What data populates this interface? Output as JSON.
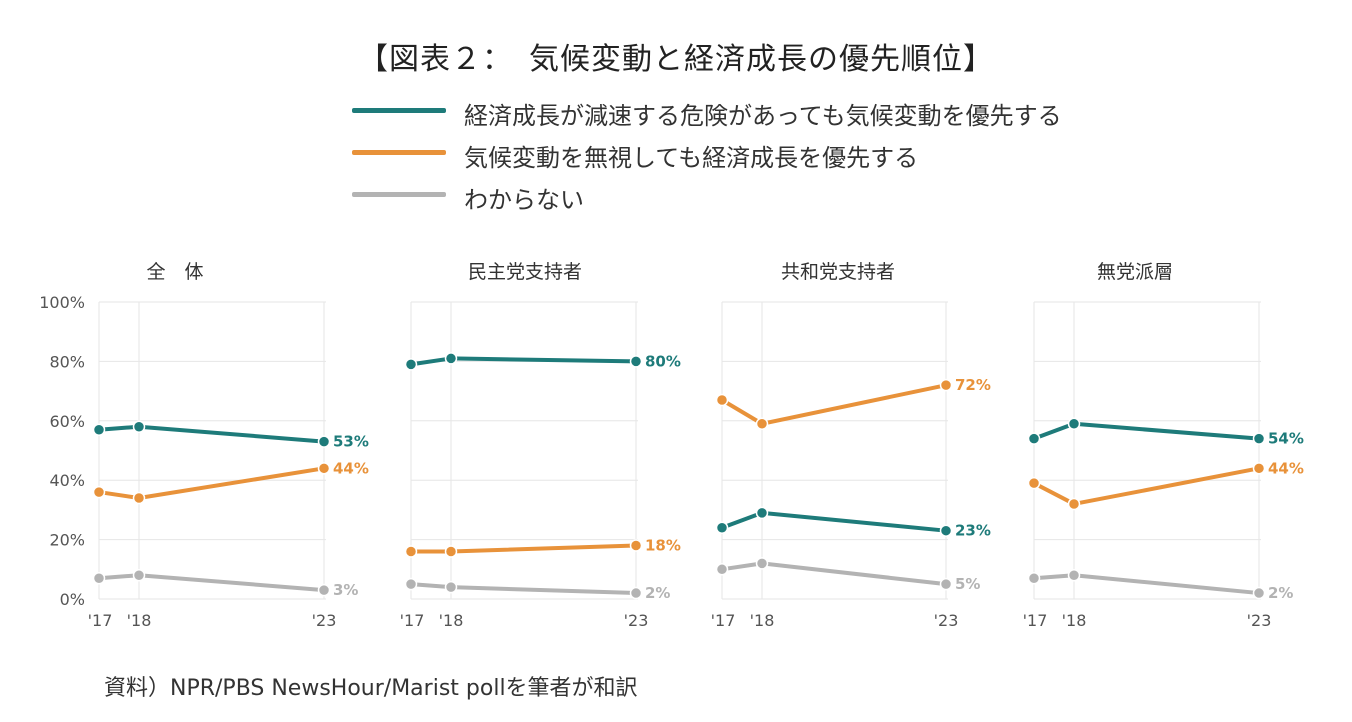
{
  "title": "【図表２：　気候変動と経済成長の優先順位】",
  "legend": [
    {
      "label": "経済成長が減速する危険があっても気候変動を優先する",
      "color": "#1e7b7a"
    },
    {
      "label": "気候変動を無視しても経済成長を優先する",
      "color": "#e8923a"
    },
    {
      "label": "わからない",
      "color": "#b3b3b3"
    }
  ],
  "source": "資料）NPR/PBS NewsHour/Marist pollを筆者が和訳",
  "chart_data": {
    "type": "line",
    "x": [
      "'17",
      "'18",
      "'23"
    ],
    "ylim": [
      0,
      100
    ],
    "yticks": [
      "100%",
      "80%",
      "60%",
      "40%",
      "20%",
      "0%"
    ],
    "colors": {
      "climate": "#1e7b7a",
      "economy": "#e8923a",
      "unknown": "#b3b3b3"
    },
    "panels": [
      {
        "title": "全　体",
        "series": {
          "climate": [
            57,
            58,
            53
          ],
          "economy": [
            36,
            34,
            44
          ],
          "unknown": [
            7,
            8,
            3
          ]
        },
        "end_labels": {
          "climate": "53%",
          "economy": "44%",
          "unknown": "3%"
        }
      },
      {
        "title": "民主党支持者",
        "series": {
          "climate": [
            79,
            81,
            80
          ],
          "economy": [
            16,
            16,
            18
          ],
          "unknown": [
            5,
            4,
            2
          ]
        },
        "end_labels": {
          "climate": "80%",
          "economy": "18%",
          "unknown": "2%"
        }
      },
      {
        "title": "共和党支持者",
        "series": {
          "climate": [
            24,
            29,
            23
          ],
          "economy": [
            67,
            59,
            72
          ],
          "unknown": [
            10,
            12,
            5
          ]
        },
        "end_labels": {
          "climate": "23%",
          "economy": "72%",
          "unknown": "5%"
        }
      },
      {
        "title": "無党派層",
        "series": {
          "climate": [
            54,
            59,
            54
          ],
          "economy": [
            39,
            32,
            44
          ],
          "unknown": [
            7,
            8,
            2
          ]
        },
        "end_labels": {
          "climate": "54%",
          "economy": "44%",
          "unknown": "2%"
        }
      }
    ]
  }
}
